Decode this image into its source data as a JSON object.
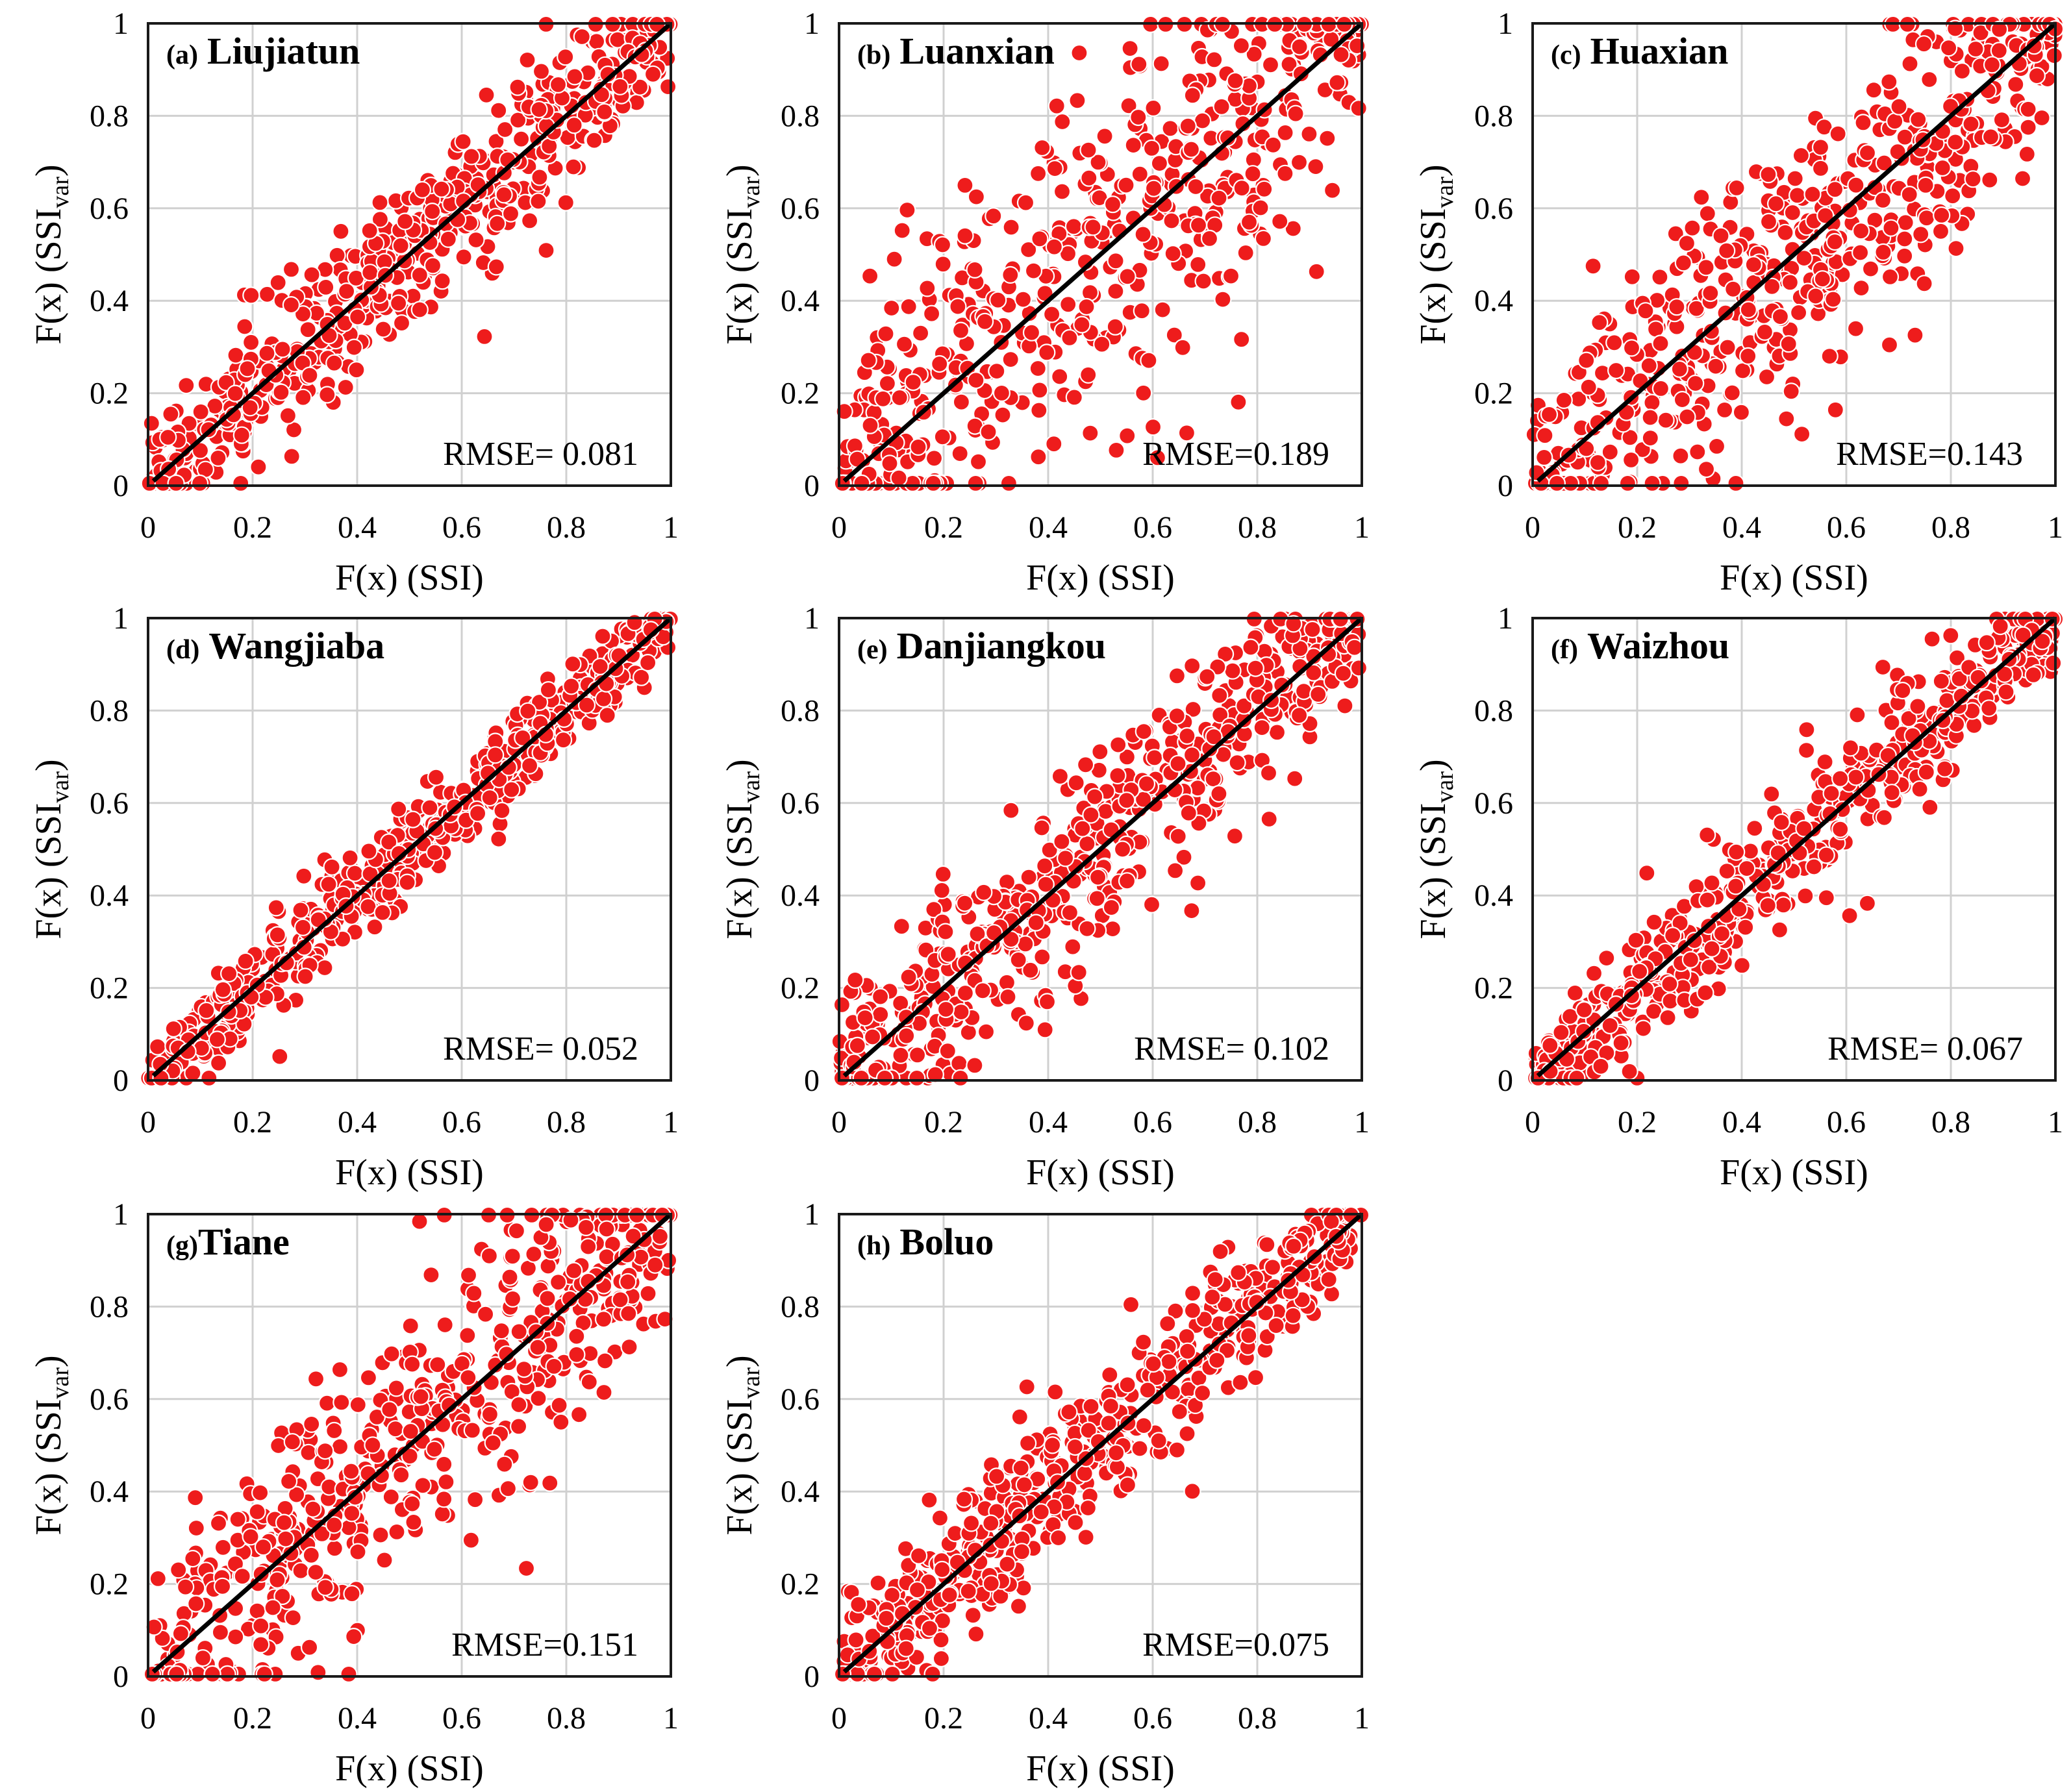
{
  "figure": {
    "ylabel_prefix": "F(x) (SSI",
    "ylabel_sub": "var",
    "ylabel_suffix": ")"
  },
  "chart_data": [
    {
      "type": "scatter",
      "panel": "a",
      "letter": "(a)",
      "title": "Liujiatun",
      "rmse_label": "RMSE= 0.081",
      "rmse": 0.081,
      "xlabel": "F(x) (SSI)",
      "ylabel": "F(x) (SSIvar)",
      "xlim": [
        0,
        1
      ],
      "ylim": [
        0,
        1
      ],
      "xticks": [
        "0",
        "0.2",
        "0.4",
        "0.6",
        "0.8",
        "1"
      ],
      "yticks": [
        "0",
        "0.2",
        "0.4",
        "0.6",
        "0.8",
        "1"
      ],
      "marker_color": "#ee1c1c",
      "line_color": "#000000",
      "n_points": 560,
      "seed": 11
    },
    {
      "type": "scatter",
      "panel": "b",
      "letter": "(b)",
      "title": "Luanxian",
      "rmse_label": "RMSE=0.189",
      "rmse": 0.189,
      "xlabel": "F(x) (SSI)",
      "ylabel": "F(x) (SSIvar)",
      "xlim": [
        0,
        1
      ],
      "ylim": [
        0,
        1
      ],
      "xticks": [
        "0",
        "0.2",
        "0.4",
        "0.6",
        "0.8",
        "1"
      ],
      "yticks": [
        "0",
        "0.2",
        "0.4",
        "0.6",
        "0.8",
        "1"
      ],
      "marker_color": "#ee1c1c",
      "line_color": "#000000",
      "n_points": 560,
      "seed": 23
    },
    {
      "type": "scatter",
      "panel": "c",
      "letter": "(c)",
      "title": "Huaxian",
      "rmse_label": "RMSE=0.143",
      "rmse": 0.143,
      "xlabel": "F(x) (SSI)",
      "ylabel": "F(x) (SSIvar)",
      "xlim": [
        0,
        1
      ],
      "ylim": [
        0,
        1
      ],
      "xticks": [
        "0",
        "0.2",
        "0.4",
        "0.6",
        "0.8",
        "1"
      ],
      "yticks": [
        "0",
        "0.2",
        "0.4",
        "0.6",
        "0.8",
        "1"
      ],
      "marker_color": "#ee1c1c",
      "line_color": "#000000",
      "n_points": 560,
      "seed": 37
    },
    {
      "type": "scatter",
      "panel": "d",
      "letter": "(d)",
      "title": "Wangjiaba",
      "rmse_label": "RMSE= 0.052",
      "rmse": 0.052,
      "xlabel": "F(x) (SSI)",
      "ylabel": "F(x) (SSIvar)",
      "xlim": [
        0,
        1
      ],
      "ylim": [
        0,
        1
      ],
      "xticks": [
        "0",
        "0.2",
        "0.4",
        "0.6",
        "0.8",
        "1"
      ],
      "yticks": [
        "0",
        "0.2",
        "0.4",
        "0.6",
        "0.8",
        "1"
      ],
      "marker_color": "#ee1c1c",
      "line_color": "#000000",
      "n_points": 560,
      "seed": 41
    },
    {
      "type": "scatter",
      "panel": "e",
      "letter": "(e)",
      "title": "Danjiangkou",
      "rmse_label": "RMSE= 0.102",
      "rmse": 0.102,
      "xlabel": "F(x) (SSI)",
      "ylabel": "F(x) (SSIvar)",
      "xlim": [
        0,
        1
      ],
      "ylim": [
        0,
        1
      ],
      "xticks": [
        "0",
        "0.2",
        "0.4",
        "0.6",
        "0.8",
        "1"
      ],
      "yticks": [
        "0",
        "0.2",
        "0.4",
        "0.6",
        "0.8",
        "1"
      ],
      "marker_color": "#ee1c1c",
      "line_color": "#000000",
      "n_points": 560,
      "seed": 53
    },
    {
      "type": "scatter",
      "panel": "f",
      "letter": "(f)",
      "title": "Waizhou",
      "rmse_label": "RMSE= 0.067",
      "rmse": 0.067,
      "xlabel": "F(x) (SSI)",
      "ylabel": "F(x) (SSIvar)",
      "xlim": [
        0,
        1
      ],
      "ylim": [
        0,
        1
      ],
      "xticks": [
        "0",
        "0.2",
        "0.4",
        "0.6",
        "0.8",
        "1"
      ],
      "yticks": [
        "0",
        "0.2",
        "0.4",
        "0.6",
        "0.8",
        "1"
      ],
      "marker_color": "#ee1c1c",
      "line_color": "#000000",
      "n_points": 560,
      "seed": 67
    },
    {
      "type": "scatter",
      "panel": "g",
      "letter": "(g)",
      "title": "Tiane",
      "rmse_label": "RMSE=0.151",
      "rmse": 0.151,
      "xlabel": "F(x) (SSI)",
      "ylabel": "F(x) (SSIvar)",
      "xlim": [
        0,
        1
      ],
      "ylim": [
        0,
        1
      ],
      "xticks": [
        "0",
        "0.2",
        "0.4",
        "0.6",
        "0.8",
        "1"
      ],
      "yticks": [
        "0",
        "0.2",
        "0.4",
        "0.6",
        "0.8",
        "1"
      ],
      "marker_color": "#ee1c1c",
      "line_color": "#000000",
      "n_points": 560,
      "seed": 79
    },
    {
      "type": "scatter",
      "panel": "h",
      "letter": "(h)",
      "title": "Boluo",
      "rmse_label": "RMSE=0.075",
      "rmse": 0.075,
      "xlabel": "F(x) (SSI)",
      "ylabel": "F(x) (SSIvar)",
      "xlim": [
        0,
        1
      ],
      "ylim": [
        0,
        1
      ],
      "xticks": [
        "0",
        "0.2",
        "0.4",
        "0.6",
        "0.8",
        "1"
      ],
      "yticks": [
        "0",
        "0.2",
        "0.4",
        "0.6",
        "0.8",
        "1"
      ],
      "marker_color": "#ee1c1c",
      "line_color": "#000000",
      "n_points": 560,
      "seed": 97
    }
  ]
}
